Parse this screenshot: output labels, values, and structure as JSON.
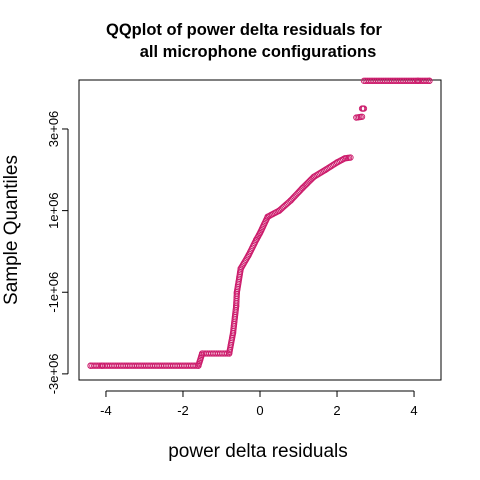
{
  "chart_data": {
    "type": "scatter",
    "title": [
      "QQplot of power delta residuals for",
      "all microphone configurations"
    ],
    "xlabel": "power delta residuals",
    "ylabel": "Sample Quantiles",
    "xlim": [
      -4.7,
      4.7
    ],
    "ylim": [
      -3150000,
      4200000
    ],
    "x_ticks": [
      -4,
      -2,
      0,
      2,
      4
    ],
    "x_tick_labels": [
      "-4",
      "-2",
      "0",
      "2",
      "4"
    ],
    "y_ticks": [
      -3000000,
      -1000000,
      1000000,
      3000000
    ],
    "y_tick_labels": [
      "-3e+06",
      "-1e+06",
      "1e+06",
      "3e+06"
    ],
    "grid": false,
    "marker": "open-circle",
    "point_color": "#CC1C6C",
    "segments": [
      {
        "x": [
          -4.4,
          -1.6
        ],
        "y": [
          -2800000,
          -2800000
        ]
      },
      {
        "x": [
          -1.6,
          -1.5
        ],
        "y": [
          -2800000,
          -2500000
        ]
      },
      {
        "x": [
          -1.5,
          -0.8
        ],
        "y": [
          -2500000,
          -2500000
        ]
      },
      {
        "x": [
          -0.8,
          -0.7
        ],
        "y": [
          -2500000,
          -2000000
        ]
      },
      {
        "x": [
          -0.7,
          -0.62
        ],
        "y": [
          -2000000,
          -1350000
        ]
      },
      {
        "x": [
          -0.62,
          -0.6
        ],
        "y": [
          -1350000,
          -1000000
        ]
      },
      {
        "x": [
          -0.6,
          -0.5
        ],
        "y": [
          -1000000,
          -420000
        ]
      },
      {
        "x": [
          -0.5,
          -0.3
        ],
        "y": [
          -420000,
          -100000
        ]
      },
      {
        "x": [
          -0.3,
          -0.1
        ],
        "y": [
          -100000,
          280000
        ]
      },
      {
        "x": [
          -0.1,
          0.0
        ],
        "y": [
          280000,
          450000
        ]
      },
      {
        "x": [
          0.0,
          0.2
        ],
        "y": [
          450000,
          850000
        ]
      },
      {
        "x": [
          0.2,
          0.5
        ],
        "y": [
          850000,
          1000000
        ]
      },
      {
        "x": [
          0.5,
          0.8
        ],
        "y": [
          1000000,
          1250000
        ]
      },
      {
        "x": [
          0.8,
          1.1
        ],
        "y": [
          1250000,
          1550000
        ]
      },
      {
        "x": [
          1.1,
          1.4
        ],
        "y": [
          1550000,
          1830000
        ]
      },
      {
        "x": [
          1.4,
          1.7
        ],
        "y": [
          1830000,
          2000000
        ]
      },
      {
        "x": [
          1.7,
          2.0
        ],
        "y": [
          2000000,
          2180000
        ]
      },
      {
        "x": [
          2.0,
          2.2
        ],
        "y": [
          2180000,
          2280000
        ]
      },
      {
        "x": [
          2.2,
          2.35
        ],
        "y": [
          2280000,
          2300000
        ]
      },
      {
        "x": [
          2.5,
          2.65
        ],
        "y": [
          3280000,
          3300000
        ]
      },
      {
        "x": [
          2.65,
          2.7
        ],
        "y": [
          3500000,
          3500000
        ]
      },
      {
        "x": [
          2.7,
          4.4
        ],
        "y": [
          4180000,
          4180000
        ]
      }
    ],
    "outliers": [
      {
        "x": -4.4,
        "y": -2800000
      },
      {
        "x": 4.4,
        "y": 4180000
      },
      {
        "x": 4.1,
        "y": 4180000
      },
      {
        "x": -4.1,
        "y": -2800000
      }
    ]
  }
}
